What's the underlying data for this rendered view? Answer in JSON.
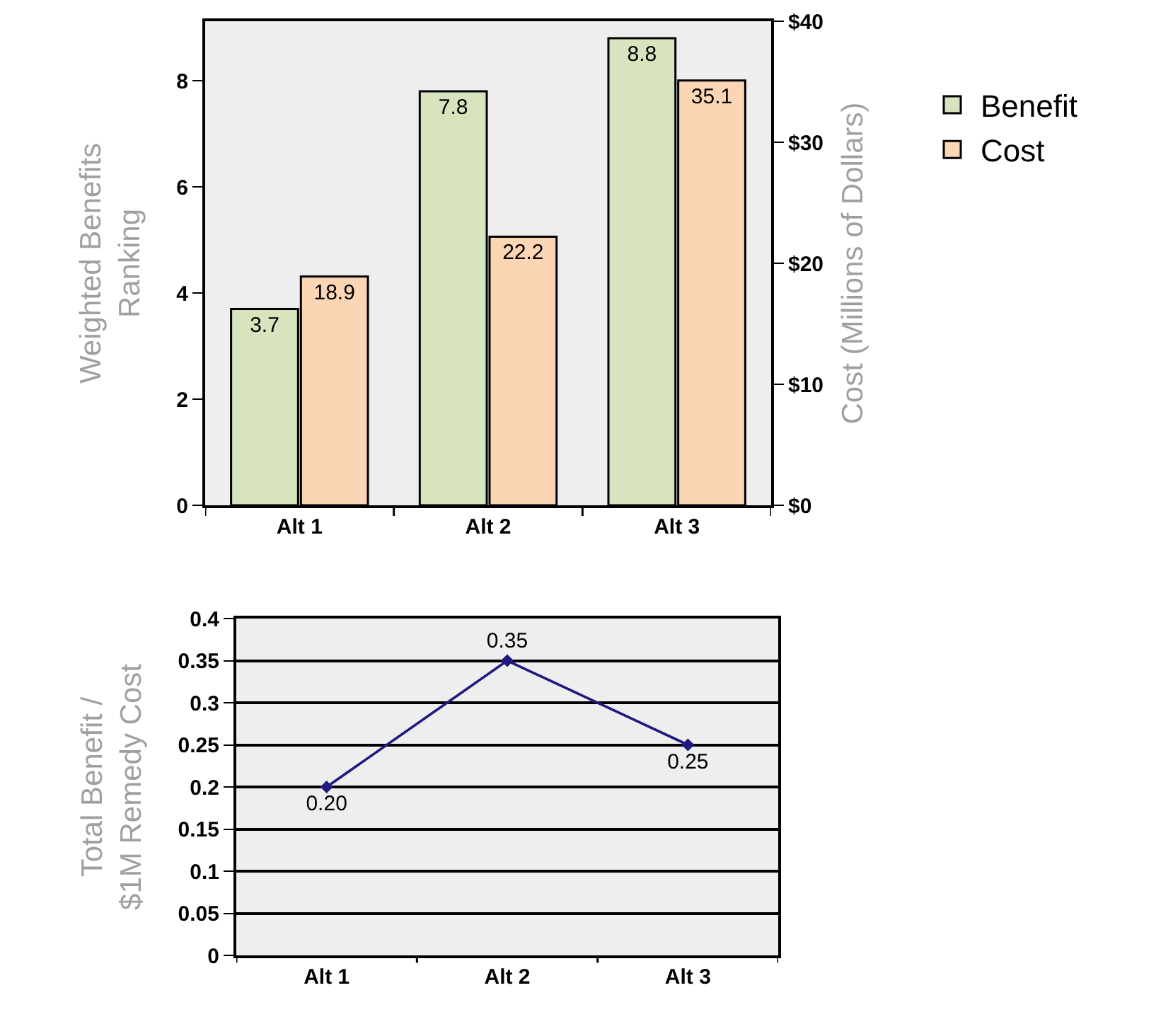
{
  "chart_data": [
    {
      "type": "bar",
      "ylabel": "Weighted Benefits\nRanking",
      "y2label": "Cost (Millions of Dollars)",
      "categories": [
        "Alt 1",
        "Alt 2",
        "Alt 3"
      ],
      "series": [
        {
          "name": "Benefit",
          "color": "#d7e4bd",
          "values": [
            3.7,
            7.8,
            8.8
          ]
        },
        {
          "name": "Cost",
          "color": "#fcd5b5",
          "values": [
            18.9,
            22.2,
            35.1
          ],
          "axis": "y2"
        }
      ],
      "ylim": [
        0,
        9.12
      ],
      "yticks": [
        0,
        2,
        4,
        6,
        8
      ],
      "y2lim": [
        0,
        40
      ],
      "y2ticks": [
        {
          "value": 0,
          "label": "$0"
        },
        {
          "value": 10,
          "label": "$10"
        },
        {
          "value": 20,
          "label": "$20"
        },
        {
          "value": 30,
          "label": "$30"
        },
        {
          "value": 40,
          "label": "$40"
        }
      ],
      "data_labels": true,
      "grid": false,
      "legend": "right"
    },
    {
      "type": "line",
      "ylabel": "Total Benefit /\n$1M Remedy Cost",
      "categories": [
        "Alt 1",
        "Alt 2",
        "Alt 3"
      ],
      "series": [
        {
          "color": "#1f1a80",
          "values": [
            0.2,
            0.35,
            0.25
          ],
          "value_labels": [
            "0.20",
            "0.35",
            "0.25"
          ]
        }
      ],
      "ylim": [
        0,
        0.4
      ],
      "yticks": [
        0,
        0.05,
        0.1,
        0.15,
        0.2,
        0.25,
        0.3,
        0.35,
        0.4
      ],
      "grid": "y",
      "marker": "diamond",
      "line_style": "solid",
      "legend": false
    }
  ]
}
